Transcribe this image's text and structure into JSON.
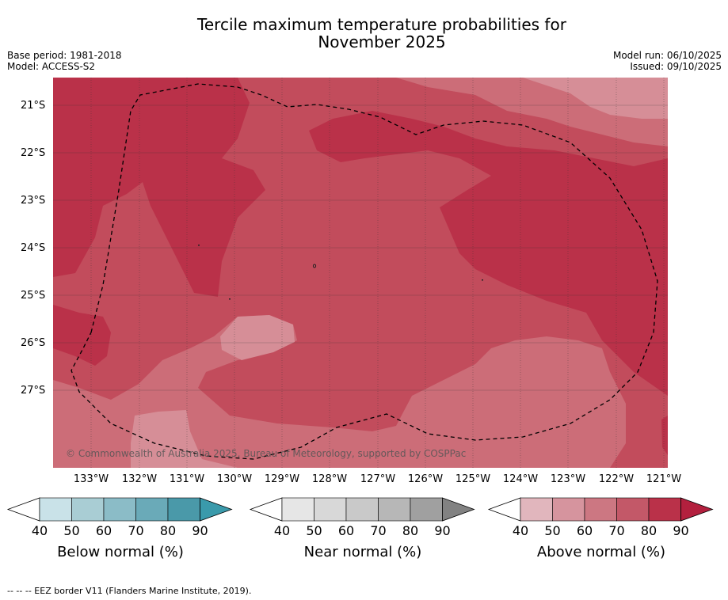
{
  "title_line1": "Tercile maximum temperature probabilities for",
  "title_line2": "November 2025",
  "meta_left": [
    "Base period: 1981-2018",
    "Model: ACCESS-S2"
  ],
  "meta_right": [
    "Model run: 06/10/2025",
    "Issued: 09/10/2025"
  ],
  "lat_labels": [
    "21°S",
    "22°S",
    "23°S",
    "24°S",
    "25°S",
    "26°S",
    "27°S"
  ],
  "lon_labels": [
    "133°W",
    "132°W",
    "131°W",
    "130°W",
    "129°W",
    "128°W",
    "127°W",
    "126°W",
    "125°W",
    "124°W",
    "123°W",
    "122°W",
    "121°W"
  ],
  "copyright": "© Commonwealth of Australia 2025, Bureau of Meteorology, supported by COSPPac",
  "colorbars": [
    {
      "label": "Below normal (%)",
      "ticks": [
        "40",
        "50",
        "60",
        "70",
        "80",
        "90"
      ],
      "colors": [
        "#c9e2e8",
        "#a9cdd4",
        "#8bbcc7",
        "#6aaab8",
        "#4a99a9",
        "#3a9aab"
      ]
    },
    {
      "label": "Near normal (%)",
      "ticks": [
        "40",
        "50",
        "60",
        "70",
        "80",
        "90"
      ],
      "colors": [
        "#e6e6e6",
        "#d8d8d8",
        "#c9c9c9",
        "#b7b7b7",
        "#a0a0a0",
        "#828282"
      ]
    },
    {
      "label": "Above normal (%)",
      "ticks": [
        "40",
        "50",
        "60",
        "70",
        "80",
        "90"
      ],
      "colors": [
        "#e1b6bd",
        "#d6949e",
        "#cc7782",
        "#c35868",
        "#ba3149",
        "#b3203e"
      ]
    }
  ],
  "footnote": "--  --  -- EEZ border V11 (Flanders Marine Institute, 2019).",
  "map_colors": {
    "c80": "#ba3149",
    "c70": "#c24c5c",
    "c60": "#cc6d78",
    "c50": "#d68e97"
  }
}
